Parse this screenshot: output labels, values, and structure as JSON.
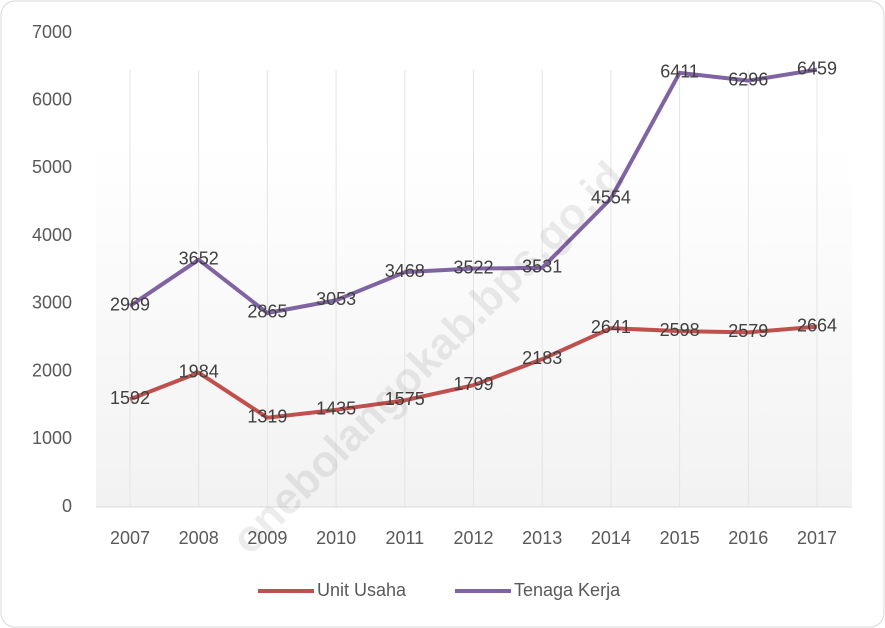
{
  "chart_data": {
    "type": "line",
    "categories": [
      "2007",
      "2008",
      "2009",
      "2010",
      "2011",
      "2012",
      "2013",
      "2014",
      "2015",
      "2016",
      "2017"
    ],
    "series": [
      {
        "name": "Unit Usaha",
        "color": "#c0504d",
        "values": [
          1592,
          1984,
          1319,
          1435,
          1575,
          1799,
          2183,
          2641,
          2598,
          2579,
          2664
        ]
      },
      {
        "name": "Tenaga Kerja",
        "color": "#8064a2",
        "values": [
          2969,
          3652,
          2865,
          3053,
          3468,
          3522,
          3531,
          4554,
          6411,
          6296,
          6459
        ]
      }
    ],
    "ylim": [
      0,
      7000
    ],
    "yticks": [
      0,
      1000,
      2000,
      3000,
      4000,
      5000,
      6000,
      7000
    ],
    "grid": true,
    "legend": "bottom",
    "watermark": "onebolangokab.bps.go.id"
  }
}
